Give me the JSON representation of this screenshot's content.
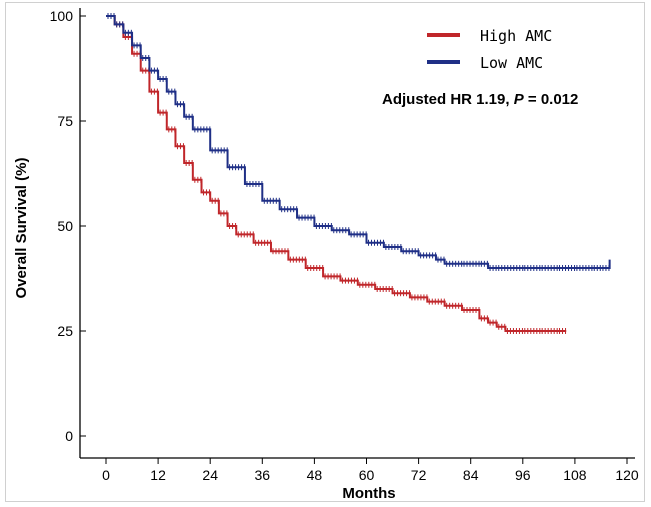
{
  "chart_data": {
    "type": "line",
    "subtype": "kaplan-meier",
    "xlabel": "Months",
    "ylabel": "Overall Survival (%)",
    "xlim": [
      0,
      120
    ],
    "ylim": [
      0,
      100
    ],
    "xticks": [
      0,
      12,
      24,
      36,
      48,
      60,
      72,
      84,
      96,
      108,
      120
    ],
    "yticks": [
      0,
      25,
      50,
      75,
      100
    ],
    "grid": false,
    "legend_position": "top-right",
    "annotation": {
      "prefix": "Adjusted HR 1.19, ",
      "p_label": "P",
      "suffix": " = 0.012"
    },
    "series": [
      {
        "name": "High AMC",
        "color": "#c0262a",
        "x": [
          0,
          2,
          4,
          6,
          8,
          10,
          12,
          14,
          16,
          18,
          20,
          22,
          24,
          26,
          28,
          30,
          34,
          38,
          42,
          46,
          50,
          54,
          58,
          62,
          66,
          70,
          74,
          78,
          82,
          86,
          88,
          90,
          92,
          96,
          100,
          104,
          106
        ],
        "y": [
          100,
          98,
          95,
          91,
          87,
          82,
          77,
          73,
          69,
          65,
          61,
          58,
          56,
          53,
          50,
          48,
          46,
          44,
          42,
          40,
          38,
          37,
          36,
          35,
          34,
          33,
          32,
          31,
          30,
          28,
          27,
          26,
          25,
          25,
          25,
          25,
          25
        ]
      },
      {
        "name": "Low AMC",
        "color": "#1f2f86",
        "x": [
          0,
          2,
          4,
          6,
          8,
          10,
          12,
          14,
          16,
          18,
          20,
          24,
          28,
          32,
          36,
          40,
          44,
          48,
          52,
          56,
          60,
          64,
          68,
          72,
          76,
          78,
          82,
          86,
          88,
          90,
          96,
          100,
          104,
          108,
          112,
          114,
          116
        ],
        "y": [
          100,
          98,
          96,
          93,
          90,
          87,
          85,
          82,
          79,
          76,
          73,
          68,
          64,
          60,
          56,
          54,
          52,
          50,
          49,
          48,
          46,
          45,
          44,
          43,
          42,
          41,
          41,
          41,
          40,
          40,
          40,
          40,
          40,
          40,
          40,
          40,
          42
        ]
      }
    ]
  }
}
